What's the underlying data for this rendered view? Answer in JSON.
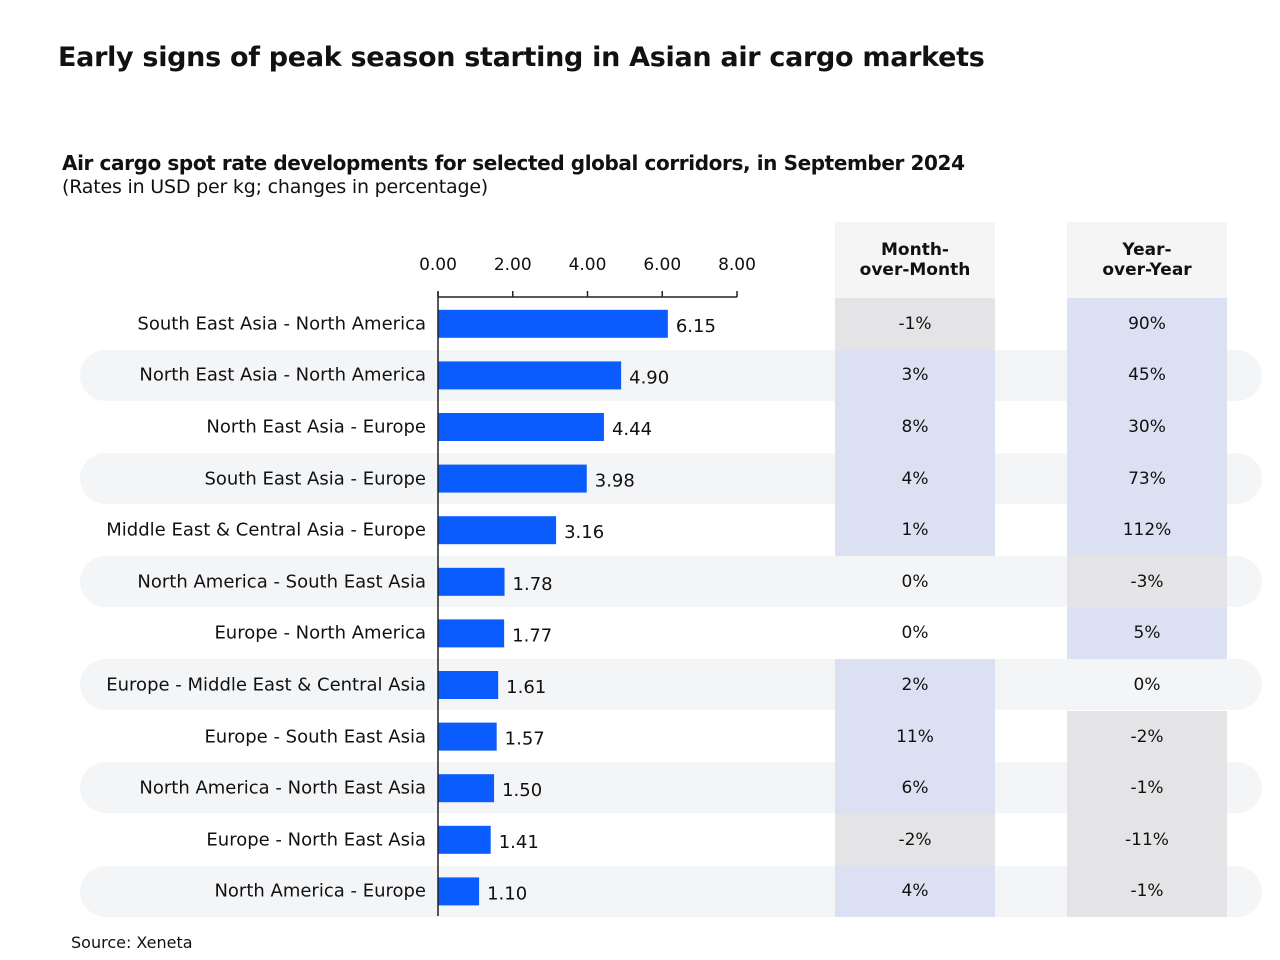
{
  "title": "Early signs of peak season starting in Asian air cargo markets",
  "subtitle": "Air cargo spot rate developments for selected global corridors, in September 2024",
  "note": "(Rates in USD per kg; changes in percentage)",
  "source": "Source: Xeneta",
  "colors": {
    "bar": "#0a5cff",
    "positive": "#dbe1f3",
    "negative": "#e4e4e6",
    "stripe": "#f4f5f7"
  },
  "chart_data": {
    "type": "bar",
    "orientation": "horizontal",
    "xlim": [
      0,
      8
    ],
    "ticks": [
      "0.00",
      "2.00",
      "4.00",
      "6.00",
      "8.00"
    ],
    "tick_values": [
      0,
      2,
      4,
      6,
      8
    ],
    "categories": [
      "South East Asia - North America",
      "North East Asia - North America",
      "North East Asia - Europe",
      "South East Asia - Europe",
      "Middle East & Central Asia - Europe",
      "North America - South East Asia",
      "Europe - North America",
      "Europe - Middle East & Central Asia",
      "Europe - South East Asia",
      "North America - North East Asia",
      "Europe - North East Asia",
      "North America - Europe"
    ],
    "values": [
      6.15,
      4.9,
      4.44,
      3.98,
      3.16,
      1.78,
      1.77,
      1.61,
      1.57,
      1.5,
      1.41,
      1.1
    ],
    "value_labels": [
      "6.15",
      "4.90",
      "4.44",
      "3.98",
      "3.16",
      "1.78",
      "1.77",
      "1.61",
      "1.57",
      "1.50",
      "1.41",
      "1.10"
    ]
  },
  "table": {
    "mom_header": [
      "Month-",
      "over-Month"
    ],
    "yoy_header": [
      "Year-",
      "over-Year"
    ],
    "mom": [
      "-1%",
      "3%",
      "8%",
      "4%",
      "1%",
      "0%",
      "0%",
      "2%",
      "11%",
      "6%",
      "-2%",
      "4%"
    ],
    "yoy": [
      "90%",
      "45%",
      "30%",
      "73%",
      "112%",
      "-3%",
      "5%",
      "0%",
      "-2%",
      "-1%",
      "-11%",
      "-1%"
    ]
  }
}
